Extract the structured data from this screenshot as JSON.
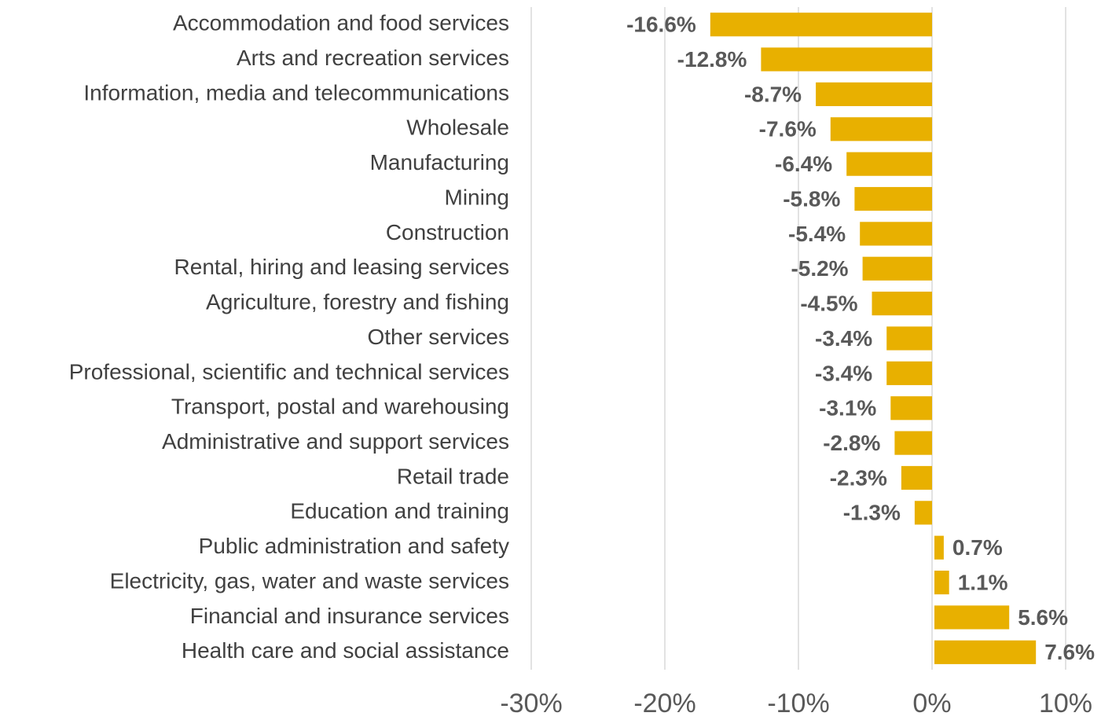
{
  "chart_data": {
    "type": "bar",
    "orientation": "horizontal",
    "categories": [
      "Accommodation and food services",
      "Arts and recreation services",
      "Information, media and telecommunications",
      "Wholesale",
      "Manufacturing",
      "Mining",
      "Construction",
      "Rental, hiring and leasing services",
      "Agriculture, forestry and fishing",
      "Other services",
      "Professional, scientific and technical services",
      "Transport, postal and warehousing",
      "Administrative and support services",
      "Retail trade",
      "Education and training",
      "Public administration and safety",
      "Electricity, gas, water and waste services",
      "Financial and insurance services",
      "Health care and social assistance"
    ],
    "values": [
      -16.6,
      -12.8,
      -8.7,
      -7.6,
      -6.4,
      -5.8,
      -5.4,
      -5.2,
      -4.5,
      -3.4,
      -3.4,
      -3.1,
      -2.8,
      -2.3,
      -1.3,
      0.7,
      1.1,
      5.6,
      7.6
    ],
    "value_labels": [
      "-16.6%",
      "-12.8%",
      "-8.7%",
      "-7.6%",
      "-6.4%",
      "-5.8%",
      "-5.4%",
      "-5.2%",
      "-4.5%",
      "-3.4%",
      "-3.4%",
      "-3.1%",
      "-2.8%",
      "-2.3%",
      "-1.3%",
      "0.7%",
      "1.1%",
      "5.6%",
      "7.6%"
    ],
    "color": "#e8b000",
    "xlim": [
      -30,
      10
    ],
    "xticks": [
      {
        "value": -30,
        "label": "-30%"
      },
      {
        "value": -20,
        "label": "-20%"
      },
      {
        "value": -10,
        "label": "-10%"
      },
      {
        "value": 0,
        "label": "0%"
      },
      {
        "value": 10,
        "label": "10%"
      }
    ],
    "grid": true
  }
}
